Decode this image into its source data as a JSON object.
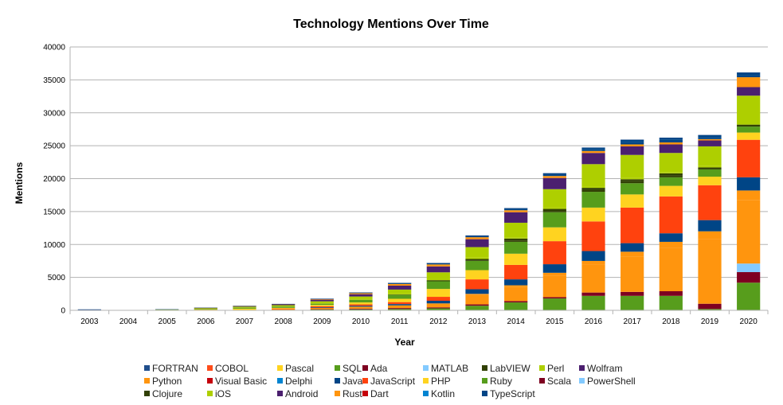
{
  "chart_data": {
    "type": "bar",
    "stacked": true,
    "title": "Technology Mentions Over Time",
    "xlabel": "Year",
    "ylabel": "Mentions",
    "ylim": [
      0,
      40000
    ],
    "yticks": [
      0,
      5000,
      10000,
      15000,
      20000,
      25000,
      30000,
      35000,
      40000
    ],
    "grid": true,
    "legend_position": "bottom",
    "categories": [
      "2003",
      "2004",
      "2005",
      "2006",
      "2007",
      "2008",
      "2009",
      "2010",
      "2011",
      "2012",
      "2013",
      "2014",
      "2015",
      "2016",
      "2017",
      "2018",
      "2019",
      "2020"
    ],
    "series": [
      {
        "name": "FORTRAN",
        "color": "#1f4e8c",
        "values": [
          100,
          30,
          20,
          20,
          20,
          20,
          20,
          20,
          20,
          20,
          30,
          30,
          30,
          30,
          30,
          30,
          30,
          30
        ]
      },
      {
        "name": "COBOL",
        "color": "#ff4d1a",
        "values": [
          0,
          0,
          0,
          0,
          0,
          0,
          0,
          0,
          0,
          0,
          0,
          0,
          0,
          0,
          0,
          0,
          0,
          0
        ]
      },
      {
        "name": "Pascal",
        "color": "#ffd320",
        "values": [
          0,
          0,
          0,
          0,
          0,
          0,
          0,
          0,
          0,
          0,
          0,
          0,
          0,
          0,
          0,
          0,
          0,
          0
        ]
      },
      {
        "name": "SQL",
        "color": "#579d1c",
        "values": [
          0,
          0,
          0,
          20,
          50,
          80,
          120,
          150,
          200,
          300,
          700,
          1200,
          1800,
          2200,
          2200,
          2200,
          200,
          4200
        ]
      },
      {
        "name": "Ada",
        "color": "#7e0021",
        "values": [
          0,
          0,
          0,
          0,
          0,
          0,
          0,
          0,
          0,
          0,
          0,
          0,
          0,
          0,
          0,
          0,
          0,
          0
        ]
      },
      {
        "name": "MATLAB",
        "color": "#83caff",
        "values": [
          0,
          0,
          0,
          0,
          0,
          0,
          0,
          0,
          0,
          0,
          0,
          0,
          0,
          0,
          0,
          0,
          0,
          0
        ]
      },
      {
        "name": "LabVIEW",
        "color": "#314004",
        "values": [
          0,
          0,
          0,
          0,
          0,
          0,
          0,
          0,
          0,
          20,
          100,
          200,
          200,
          300,
          300,
          300,
          0,
          0
        ]
      },
      {
        "name": "Perl",
        "color": "#aecf00",
        "values": [
          0,
          0,
          0,
          0,
          0,
          0,
          0,
          0,
          0,
          0,
          0,
          0,
          0,
          0,
          0,
          0,
          0,
          0
        ]
      },
      {
        "name": "Wolfram",
        "color": "#4b1f6f",
        "values": [
          0,
          0,
          0,
          0,
          0,
          0,
          0,
          0,
          0,
          0,
          0,
          0,
          0,
          0,
          0,
          0,
          0,
          0
        ]
      },
      {
        "name": "Python",
        "color": "#ff950e",
        "values": [
          0,
          0,
          0,
          20,
          20,
          30,
          80,
          150,
          250,
          300,
          300,
          300,
          300,
          300,
          300,
          300,
          200,
          1500
        ]
      },
      {
        "name": "Visual Basic",
        "color": "#c5000b",
        "values": [
          0,
          0,
          0,
          0,
          0,
          0,
          0,
          0,
          0,
          0,
          0,
          0,
          0,
          0,
          0,
          0,
          0,
          0
        ]
      },
      {
        "name": "Delphi",
        "color": "#0084d1",
        "values": [
          0,
          0,
          0,
          0,
          0,
          0,
          0,
          0,
          0,
          0,
          0,
          0,
          0,
          0,
          0,
          0,
          0,
          0
        ]
      },
      {
        "name": "Java",
        "color": "#004586",
        "values": [
          0,
          0,
          0,
          0,
          0,
          0,
          0,
          0,
          0,
          0,
          0,
          0,
          0,
          0,
          0,
          0,
          0,
          0
        ]
      },
      {
        "name": "JavaScript",
        "color": "#ff420e",
        "values": [
          0,
          0,
          0,
          0,
          0,
          0,
          0,
          0,
          0,
          0,
          0,
          0,
          0,
          0,
          0,
          0,
          0,
          0
        ]
      },
      {
        "name": "PHP",
        "color": "#ffd320",
        "values": [
          0,
          0,
          0,
          0,
          0,
          0,
          0,
          0,
          0,
          0,
          0,
          0,
          0,
          0,
          0,
          0,
          0,
          0
        ]
      },
      {
        "name": "Ruby",
        "color": "#579d1c",
        "values": [
          0,
          0,
          0,
          0,
          0,
          0,
          0,
          0,
          0,
          0,
          0,
          0,
          0,
          0,
          0,
          0,
          0,
          0
        ]
      },
      {
        "name": "Scala",
        "color": "#7e0021",
        "values": [
          0,
          0,
          0,
          0,
          0,
          0,
          50,
          100,
          150,
          150,
          200,
          200,
          200,
          500,
          600,
          700,
          800,
          1600
        ]
      },
      {
        "name": "PowerShell",
        "color": "#83caff",
        "values": [
          0,
          0,
          0,
          0,
          0,
          0,
          0,
          0,
          0,
          0,
          0,
          0,
          0,
          0,
          0,
          0,
          0,
          1300
        ]
      },
      {
        "name": "Clojure",
        "color": "#314004",
        "values": [
          0,
          0,
          0,
          0,
          0,
          0,
          0,
          0,
          0,
          0,
          0,
          0,
          0,
          0,
          0,
          0,
          0,
          0
        ]
      },
      {
        "name": "iOS",
        "color": "#aecf00",
        "values": [
          0,
          0,
          0,
          0,
          0,
          0,
          0,
          0,
          0,
          0,
          0,
          0,
          0,
          0,
          0,
          0,
          0,
          0
        ]
      },
      {
        "name": "Android",
        "color": "#4b1f6f",
        "values": [
          0,
          0,
          0,
          0,
          0,
          0,
          0,
          0,
          0,
          0,
          0,
          0,
          0,
          0,
          0,
          0,
          0,
          0
        ]
      },
      {
        "name": "Rust",
        "color": "#ff950e",
        "values": [
          0,
          0,
          0,
          0,
          0,
          100,
          200,
          300,
          400,
          600,
          1500,
          2200,
          3300,
          4200,
          5400,
          6600,
          9800,
          9600
        ]
      },
      {
        "name": "Dart",
        "color": "#c5000b",
        "values": [
          0,
          0,
          0,
          0,
          0,
          0,
          0,
          0,
          0,
          0,
          0,
          0,
          0,
          0,
          0,
          0,
          0,
          0
        ]
      },
      {
        "name": "Kotlin",
        "color": "#0084d1",
        "values": [
          0,
          0,
          0,
          0,
          0,
          0,
          0,
          0,
          0,
          0,
          0,
          0,
          0,
          0,
          0,
          0,
          0,
          0
        ]
      },
      {
        "name": "TypeScript",
        "color": "#004586",
        "values": [
          0,
          0,
          0,
          0,
          0,
          0,
          50,
          100,
          150,
          200,
          200,
          200,
          200,
          300,
          400,
          400,
          300,
          300
        ]
      }
    ],
    "extra_segments": [
      {
        "label": "Java",
        "color": "#004586",
        "values": [
          0,
          0,
          0,
          0,
          0,
          0,
          100,
          150,
          200,
          400,
          700,
          900,
          1300,
          1500,
          1300,
          1300,
          1700,
          2000
        ]
      },
      {
        "label": "JavaScript",
        "color": "#ff420e",
        "values": [
          0,
          0,
          0,
          0,
          0,
          100,
          150,
          200,
          300,
          600,
          1500,
          2200,
          3500,
          4500,
          5400,
          5600,
          5300,
          5700
        ]
      },
      {
        "label": "PHP",
        "color": "#ffd320",
        "values": [
          50,
          0,
          50,
          100,
          200,
          100,
          200,
          300,
          500,
          1200,
          1400,
          1700,
          2100,
          2100,
          2000,
          1600,
          1300,
          1100
        ]
      },
      {
        "label": "Ruby",
        "color": "#579d1c",
        "values": [
          0,
          0,
          50,
          100,
          150,
          200,
          200,
          400,
          600,
          1200,
          1400,
          1800,
          2300,
          2400,
          1700,
          1300,
          1100,
          900
        ]
      },
      {
        "label": "Clojure",
        "color": "#314004",
        "values": [
          0,
          0,
          0,
          0,
          0,
          0,
          0,
          0,
          50,
          100,
          200,
          300,
          300,
          300,
          300,
          300,
          300,
          300
        ]
      },
      {
        "label": "iOS",
        "color": "#aecf00",
        "values": [
          0,
          0,
          50,
          100,
          150,
          200,
          300,
          400,
          600,
          1000,
          1600,
          2200,
          2800,
          3400,
          3500,
          2900,
          3000,
          4200
        ]
      },
      {
        "label": "Android",
        "color": "#4b1f6f",
        "values": [
          0,
          0,
          0,
          50,
          100,
          150,
          250,
          350,
          600,
          900,
          1200,
          1600,
          1700,
          1700,
          1300,
          1300,
          900,
          1300
        ]
      },
      {
        "label": "Perl",
        "color": "#aecf00",
        "values": [
          0,
          0,
          0,
          0,
          0,
          0,
          50,
          100,
          150,
          200,
          200,
          200,
          200,
          200,
          200,
          200,
          200,
          200
        ]
      },
      {
        "label": "Python",
        "color": "#ff950e",
        "values": [
          0,
          0,
          0,
          0,
          0,
          0,
          0,
          0,
          0,
          0,
          100,
          200,
          400,
          600,
          700,
          900,
          1200,
          1500
        ]
      },
      {
        "label": "TypeScript",
        "color": "#004586",
        "values": [
          0,
          0,
          0,
          0,
          0,
          0,
          0,
          0,
          0,
          0,
          50,
          100,
          200,
          200,
          300,
          300,
          300,
          400
        ]
      }
    ]
  }
}
